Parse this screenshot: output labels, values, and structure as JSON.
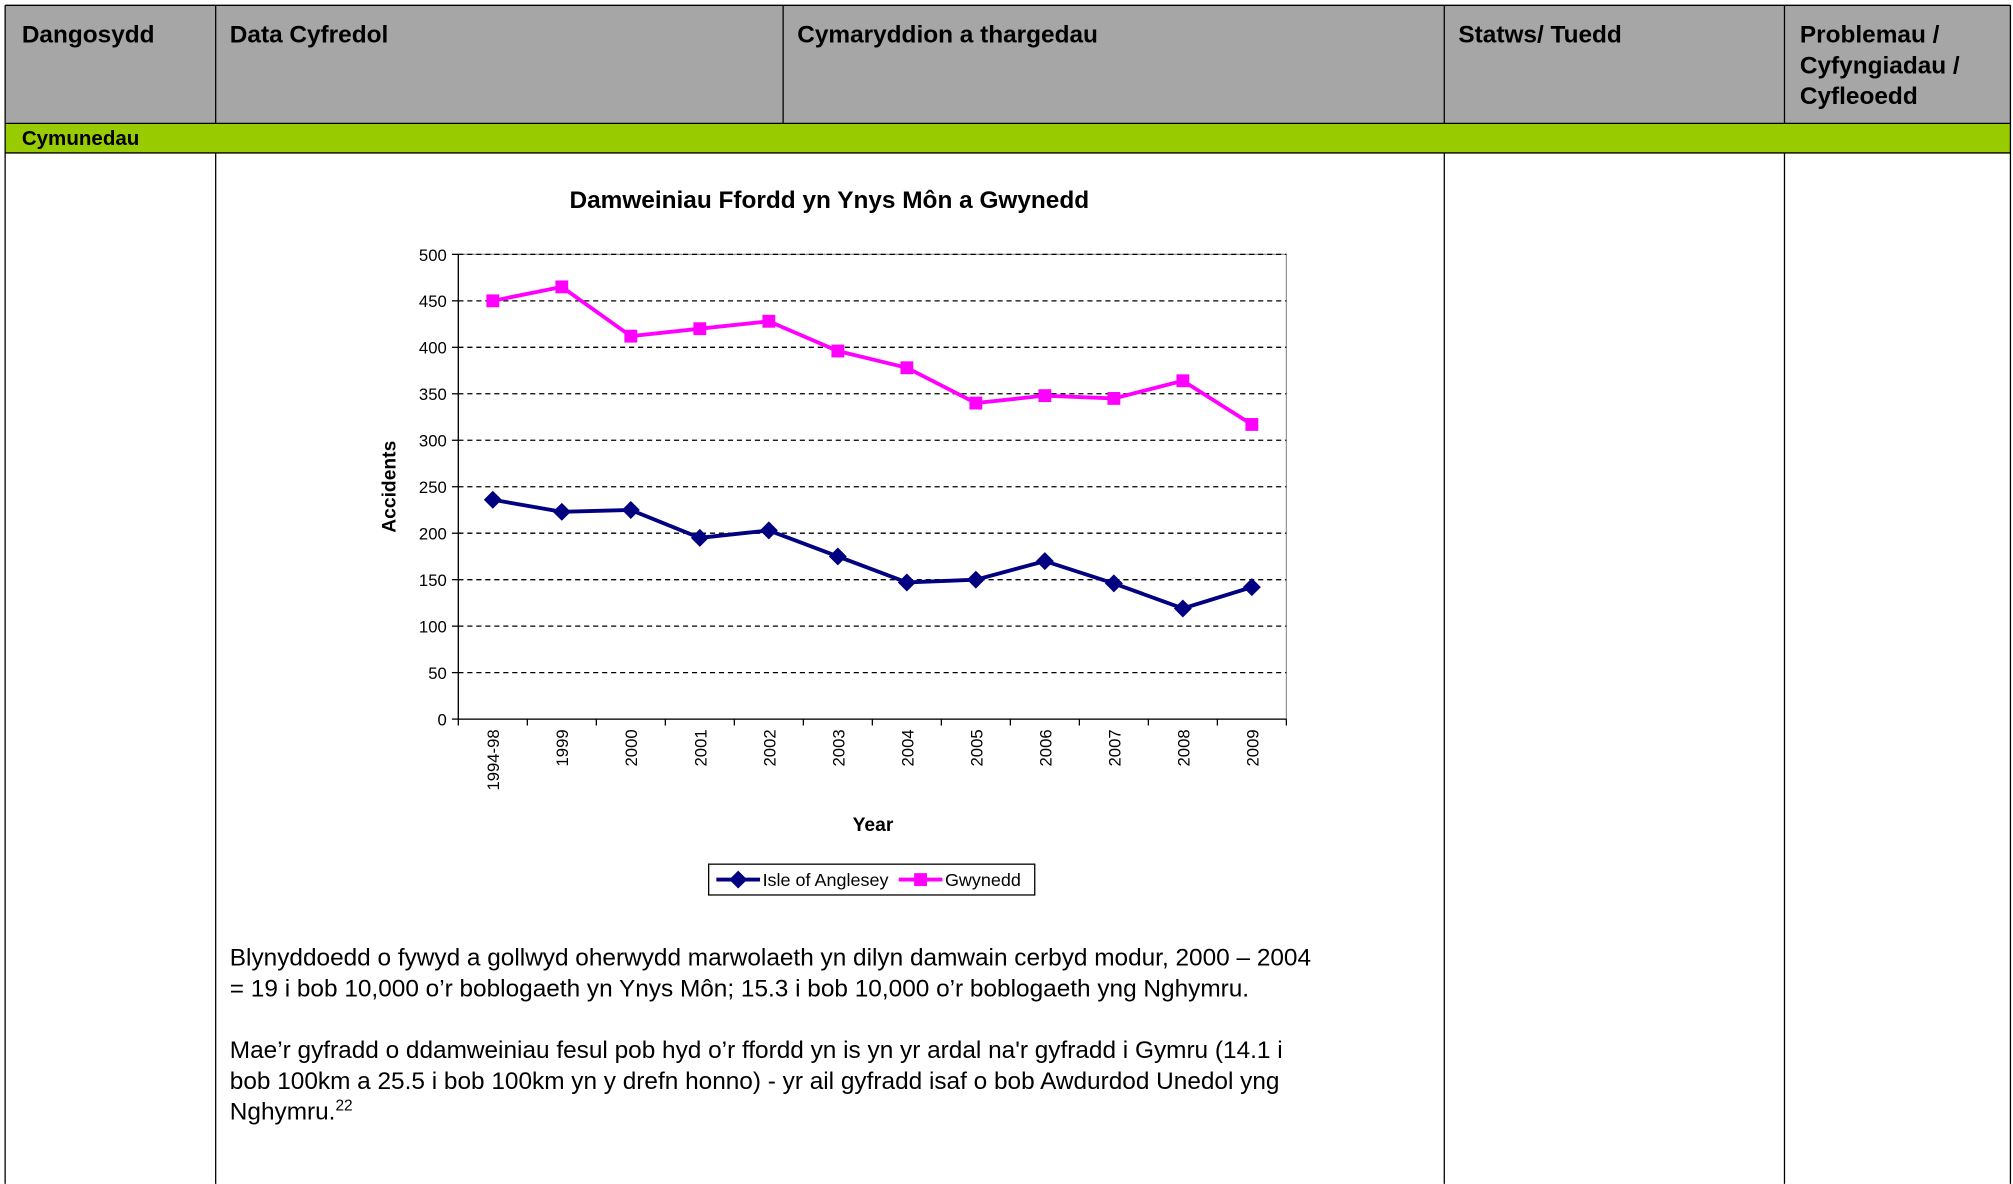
{
  "table": {
    "headers": [
      {
        "lines": [
          "Dangosydd"
        ]
      },
      {
        "lines": [
          "Data Cyfredol"
        ]
      },
      {
        "lines": [
          "Cymaryddion a thargedau"
        ]
      },
      {
        "lines": [
          "Statws/ Tuedd"
        ]
      },
      {
        "lines": [
          "Problemau /",
          "Cyfyngiadau /",
          "Cyfleoedd"
        ]
      }
    ],
    "section": "Cymunedau"
  },
  "chart_data": {
    "type": "line",
    "title": "Damweiniau Ffordd yn Ynys Môn a Gwynedd",
    "x_label": "Year",
    "y_label": "Accidents",
    "categories": [
      "1994-98",
      "1999",
      "2000",
      "2001",
      "2002",
      "2003",
      "2004",
      "2005",
      "2006",
      "2007",
      "2008",
      "2009"
    ],
    "series": [
      {
        "name": "Isle of Anglesey",
        "color": "#000080",
        "marker": "diamond",
        "values": [
          236,
          223,
          225,
          195,
          203,
          175,
          147,
          150,
          170,
          146,
          119,
          142
        ]
      },
      {
        "name": "Gwynedd",
        "color": "#ff00ff",
        "marker": "square",
        "values": [
          450,
          465,
          412,
          420,
          428,
          396,
          378,
          340,
          348,
          345,
          364,
          317
        ]
      }
    ],
    "ylim": [
      0,
      500
    ],
    "yticks": [
      0,
      50,
      100,
      150,
      200,
      250,
      300,
      350,
      400,
      450,
      500
    ],
    "grid": true,
    "legend": "bottom"
  },
  "paragraphs": [
    {
      "lines": [
        "Blynyddoedd o fywyd a gollwyd oherwydd marwolaeth yn dilyn damwain cerbyd modur, 2000 – 2004",
        "= 19 i bob 10,000 o’r boblogaeth yn Ynys Môn; 15.3 i bob 10,000 o’r boblogaeth yng Nghymru."
      ]
    },
    {
      "lines": [
        "Mae’r gyfradd o ddamweiniau fesul pob hyd o’r ffordd yn is yn yr ardal na'r gyfradd i Gymru (14.1 i",
        "bob 100km a 25.5 i bob 100km yn y drefn honno) - yr ail gyfradd isaf o bob Awdurdod Unedol yng",
        "Nghymru."
      ],
      "footnote": "22"
    }
  ]
}
